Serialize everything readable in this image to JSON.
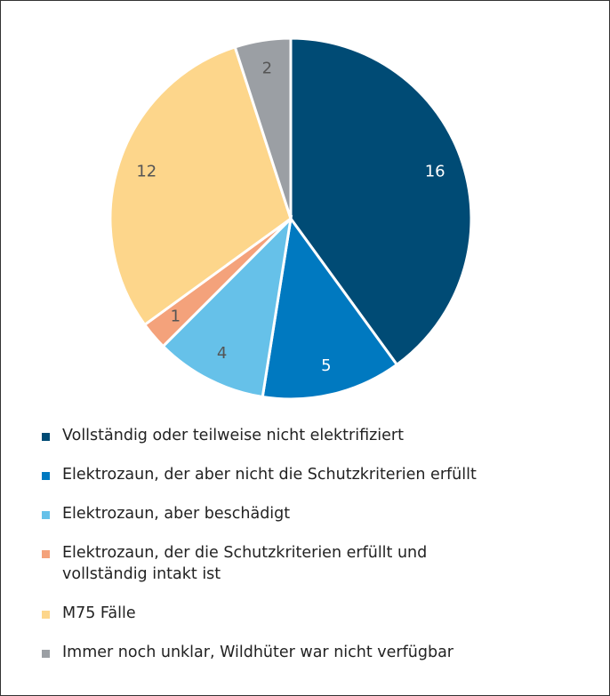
{
  "chart_data": {
    "type": "pie",
    "categories": [
      "Vollständig oder teilweise nicht elektrifiziert",
      "Elektrozaun, der aber nicht die Schutzkriterien erfüllt",
      "Elektrozaun, aber beschädigt",
      "Elektrozaun, der die Schutzkriterien erfüllt und vollständig intakt ist",
      "M75  Fälle",
      "Immer noch unklar, Wildhüter war nicht verfügbar"
    ],
    "values": [
      16,
      5,
      4,
      1,
      12,
      2
    ],
    "colors": [
      "#004b75",
      "#0079c0",
      "#66c1e9",
      "#f4a27b",
      "#fdd68b",
      "#9b9fa4"
    ]
  }
}
